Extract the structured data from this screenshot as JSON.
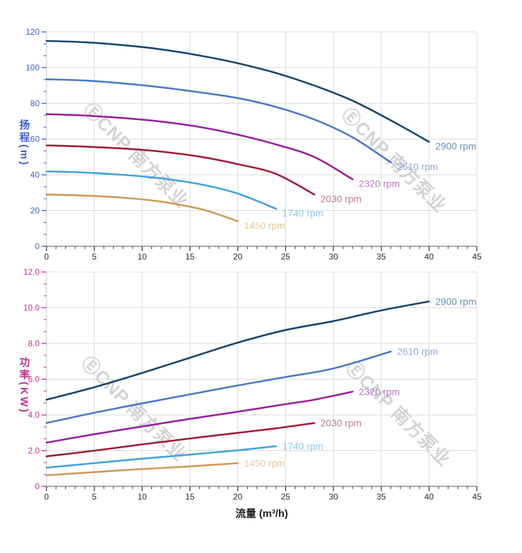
{
  "watermark": {
    "text": "ⒺCNP 南方泵业",
    "color": "#d3d3d6"
  },
  "axes": {
    "flow": {
      "title": "流量 (m³/h)",
      "min": 0,
      "max": 45,
      "major_step": 5,
      "minor_step": 1,
      "tick_labels": [
        "0",
        "5",
        "10",
        "15",
        "20",
        "25",
        "30",
        "35",
        "40",
        "45"
      ],
      "tick_label_color": "#2b2b2b",
      "title_color": "#1f1f1f",
      "axis_line_color": "#555555"
    },
    "head": {
      "title": "扬程",
      "unit": "(m)",
      "min": 0,
      "max": 120,
      "major_step": 20,
      "tick_labels": [
        "0",
        "20",
        "40",
        "60",
        "80",
        "100",
        "120"
      ],
      "color": "#3a5fcd"
    },
    "power": {
      "title": "功率",
      "unit": "(KW)",
      "min": 0,
      "max": 12,
      "major_step": 2,
      "tick_labels": [
        "0",
        "2.0",
        "4.0",
        "6.0",
        "8.0",
        "10.0",
        "12.0"
      ],
      "color": "#c0308f"
    }
  },
  "style": {
    "grid_color": "#d9d9d9",
    "y_axis_line_color": "#c9c9c9",
    "x_tick_color": "#444444",
    "background": "#ffffff"
  },
  "chart_data": [
    {
      "id": "head-vs-flow",
      "type": "line",
      "title": "",
      "xlabel": "流量 (m³/h)",
      "ylabel": "扬程 (m)",
      "xlim": [
        0,
        45
      ],
      "ylim": [
        0,
        120
      ],
      "grid": true,
      "legend_position": "at-curve-end",
      "series": [
        {
          "name": "2900 rpm",
          "color": "#17466f",
          "label_color": "#6a8fb5",
          "points": [
            [
              0,
              115
            ],
            [
              4,
              114.2
            ],
            [
              8,
              112.6
            ],
            [
              12,
              110.2
            ],
            [
              16,
              106.8
            ],
            [
              20,
              102.5
            ],
            [
              24,
              97
            ],
            [
              28,
              90
            ],
            [
              32,
              81.5
            ],
            [
              36,
              70.5
            ],
            [
              40,
              58.5
            ]
          ]
        },
        {
          "name": "2610 rpm",
          "color": "#4c79c6",
          "label_color": "#92a8dc",
          "points": [
            [
              0,
              93.5
            ],
            [
              4,
              92.8
            ],
            [
              8,
              91.2
            ],
            [
              12,
              89
            ],
            [
              16,
              86.2
            ],
            [
              20,
              83
            ],
            [
              24,
              78
            ],
            [
              28,
              71
            ],
            [
              32,
              61
            ],
            [
              36,
              47
            ]
          ]
        },
        {
          "name": "2320 rpm",
          "color": "#97209c",
          "label_color": "#ba75c9",
          "points": [
            [
              0,
              74
            ],
            [
              4,
              73.2
            ],
            [
              8,
              71.8
            ],
            [
              12,
              69.8
            ],
            [
              16,
              66.8
            ],
            [
              20,
              62.5
            ],
            [
              24,
              57
            ],
            [
              28,
              50
            ],
            [
              32,
              37.5
            ]
          ]
        },
        {
          "name": "2030 rpm",
          "color": "#a21a38",
          "label_color": "#c27c90",
          "points": [
            [
              0,
              56.5
            ],
            [
              4,
              55.8
            ],
            [
              8,
              54.7
            ],
            [
              12,
              53
            ],
            [
              16,
              50.2
            ],
            [
              20,
              46
            ],
            [
              24,
              40.5
            ],
            [
              28,
              29
            ]
          ]
        },
        {
          "name": "1740 rpm",
          "color": "#41a3dd",
          "label_color": "#8ac5ef",
          "points": [
            [
              0,
              42
            ],
            [
              4,
              41.3
            ],
            [
              8,
              40
            ],
            [
              12,
              38
            ],
            [
              16,
              34.8
            ],
            [
              20,
              29.5
            ],
            [
              24,
              21
            ]
          ]
        },
        {
          "name": "1450 rpm",
          "color": "#d09a52",
          "label_color": "#e6c79b",
          "points": [
            [
              0,
              29
            ],
            [
              4,
              28.4
            ],
            [
              8,
              27.2
            ],
            [
              12,
              25
            ],
            [
              16,
              21
            ],
            [
              18,
              17.8
            ],
            [
              20,
              14
            ]
          ]
        }
      ]
    },
    {
      "id": "power-vs-flow",
      "type": "line",
      "title": "",
      "xlabel": "流量 (m³/h)",
      "ylabel": "功率 (KW)",
      "xlim": [
        0,
        45
      ],
      "ylim": [
        0,
        12
      ],
      "grid": true,
      "legend_position": "at-curve-end",
      "series": [
        {
          "name": "2900 rpm",
          "color": "#17466f",
          "label_color": "#6a8fb5",
          "points": [
            [
              0,
              4.85
            ],
            [
              5,
              5.55
            ],
            [
              10,
              6.35
            ],
            [
              15,
              7.2
            ],
            [
              20,
              8.05
            ],
            [
              25,
              8.75
            ],
            [
              30,
              9.25
            ],
            [
              35,
              9.85
            ],
            [
              40,
              10.35
            ]
          ]
        },
        {
          "name": "2610 rpm",
          "color": "#4c79c6",
          "label_color": "#92a8dc",
          "points": [
            [
              0,
              3.55
            ],
            [
              5,
              4.12
            ],
            [
              10,
              4.65
            ],
            [
              15,
              5.15
            ],
            [
              20,
              5.65
            ],
            [
              25,
              6.12
            ],
            [
              30,
              6.6
            ],
            [
              36,
              7.55
            ]
          ]
        },
        {
          "name": "2320 rpm",
          "color": "#97209c",
          "label_color": "#ba75c9",
          "points": [
            [
              0,
              2.45
            ],
            [
              5,
              2.92
            ],
            [
              10,
              3.35
            ],
            [
              15,
              3.78
            ],
            [
              20,
              4.18
            ],
            [
              25,
              4.6
            ],
            [
              28,
              4.85
            ],
            [
              32,
              5.3
            ]
          ]
        },
        {
          "name": "2030 rpm",
          "color": "#a21a38",
          "label_color": "#c27c90",
          "points": [
            [
              0,
              1.68
            ],
            [
              5,
              2.0
            ],
            [
              10,
              2.35
            ],
            [
              15,
              2.68
            ],
            [
              20,
              3.0
            ],
            [
              24,
              3.25
            ],
            [
              28,
              3.55
            ]
          ]
        },
        {
          "name": "1740 rpm",
          "color": "#41a3dd",
          "label_color": "#8ac5ef",
          "points": [
            [
              0,
              1.05
            ],
            [
              5,
              1.3
            ],
            [
              10,
              1.55
            ],
            [
              15,
              1.78
            ],
            [
              20,
              2.02
            ],
            [
              24,
              2.25
            ]
          ]
        },
        {
          "name": "1450 rpm",
          "color": "#d09a52",
          "label_color": "#e6c79b",
          "points": [
            [
              0,
              0.62
            ],
            [
              5,
              0.8
            ],
            [
              10,
              0.97
            ],
            [
              15,
              1.12
            ],
            [
              20,
              1.3
            ]
          ]
        }
      ]
    }
  ]
}
